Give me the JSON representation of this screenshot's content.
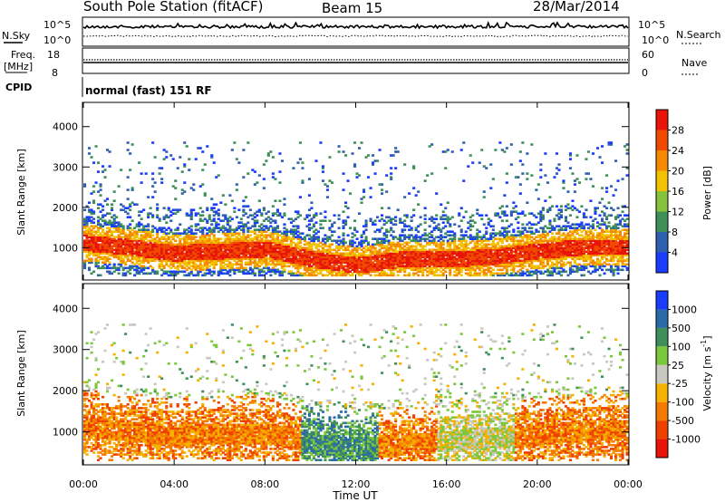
{
  "header": {
    "station": "South Pole Station (fitACF)",
    "beam": "Beam 15",
    "date": "28/Mar/2014"
  },
  "summary": {
    "nsky_label": "N.Sky",
    "nsky_ticks": [
      "10^5",
      "10^0"
    ],
    "nsearch_label": "N.Search",
    "nsearch_ticks": [
      "10^5",
      "10^0"
    ],
    "freq_label": "Freq.",
    "freq_unit": "[MHz]",
    "freq_ticks": [
      "18",
      "8"
    ],
    "nave_label": "Nave",
    "nave_ticks": [
      "60",
      "0"
    ],
    "cpid_label": "CPID",
    "cpid_value": "normal (fast) 151 RF"
  },
  "chart_data": [
    {
      "type": "heatmap",
      "panel": "power",
      "ylabel": "Slant Range [km]",
      "ylim": [
        200,
        4600
      ],
      "yticks": [
        1000,
        2000,
        3000,
        4000
      ],
      "xlim": [
        "00:00",
        "24:00"
      ],
      "xticks": [
        "00:00",
        "04:00",
        "08:00",
        "12:00",
        "16:00",
        "20:00",
        "00:00"
      ],
      "colorbar": {
        "label": "Power [dB]",
        "ticks": [
          "4",
          "8",
          "12",
          "16",
          "20",
          "24",
          "28"
        ],
        "colors": [
          "#1a3cff",
          "#2f5fb0",
          "#3e8f58",
          "#86c23c",
          "#f2c200",
          "#f58a00",
          "#f04a00",
          "#e8140a"
        ]
      },
      "scatter_echo_core_km": [
        {
          "t": "00:00",
          "range": 1100,
          "level": "medium"
        },
        {
          "t": "02:00",
          "range": 1000,
          "level": "medium"
        },
        {
          "t": "04:00",
          "range": 850,
          "level": "strong"
        },
        {
          "t": "06:00",
          "range": 900,
          "level": "strong"
        },
        {
          "t": "08:00",
          "range": 950,
          "level": "strong"
        },
        {
          "t": "10:00",
          "range": 700,
          "level": "strong"
        },
        {
          "t": "12:00",
          "range": 550,
          "level": "strong"
        },
        {
          "t": "14:00",
          "range": 700,
          "level": "medium"
        },
        {
          "t": "16:00",
          "range": 700,
          "level": "strong"
        },
        {
          "t": "18:00",
          "range": 750,
          "level": "strong"
        },
        {
          "t": "20:00",
          "range": 900,
          "level": "strong"
        },
        {
          "t": "22:00",
          "range": 1000,
          "level": "strong"
        }
      ]
    },
    {
      "type": "heatmap",
      "panel": "velocity",
      "ylabel": "Slant Range [km]",
      "xlabel": "Time UT",
      "ylim": [
        200,
        4600
      ],
      "yticks": [
        1000,
        2000,
        3000,
        4000
      ],
      "xlim": [
        "00:00",
        "24:00"
      ],
      "xticks": [
        "00:00",
        "04:00",
        "08:00",
        "12:00",
        "16:00",
        "20:00",
        "00:00"
      ],
      "colorbar": {
        "label": "Velocity [m s",
        "label_sup": "-1",
        "label_end": "]",
        "ticks": [
          "1000",
          "500",
          "100",
          "25",
          "-25",
          "-100",
          "-500",
          "-1000"
        ],
        "colors": [
          "#1a3cff",
          "#2a6aa8",
          "#3f8f5a",
          "#7cc83c",
          "#c8c8c0",
          "#f5b000",
          "#f57a00",
          "#f04000",
          "#e8140a"
        ]
      },
      "scatter_echo_core_km": [
        {
          "t": "00:00",
          "range": 1100,
          "velocity": "-500"
        },
        {
          "t": "04:00",
          "range": 900,
          "velocity": "-500"
        },
        {
          "t": "08:00",
          "range": 950,
          "velocity": "-500"
        },
        {
          "t": "10:00",
          "range": 700,
          "velocity": "100"
        },
        {
          "t": "12:00",
          "range": 600,
          "velocity": "500"
        },
        {
          "t": "16:00",
          "range": 750,
          "velocity": "-100"
        },
        {
          "t": "20:00",
          "range": 900,
          "velocity": "-500"
        },
        {
          "t": "22:00",
          "range": 1000,
          "velocity": "-500"
        }
      ]
    }
  ]
}
